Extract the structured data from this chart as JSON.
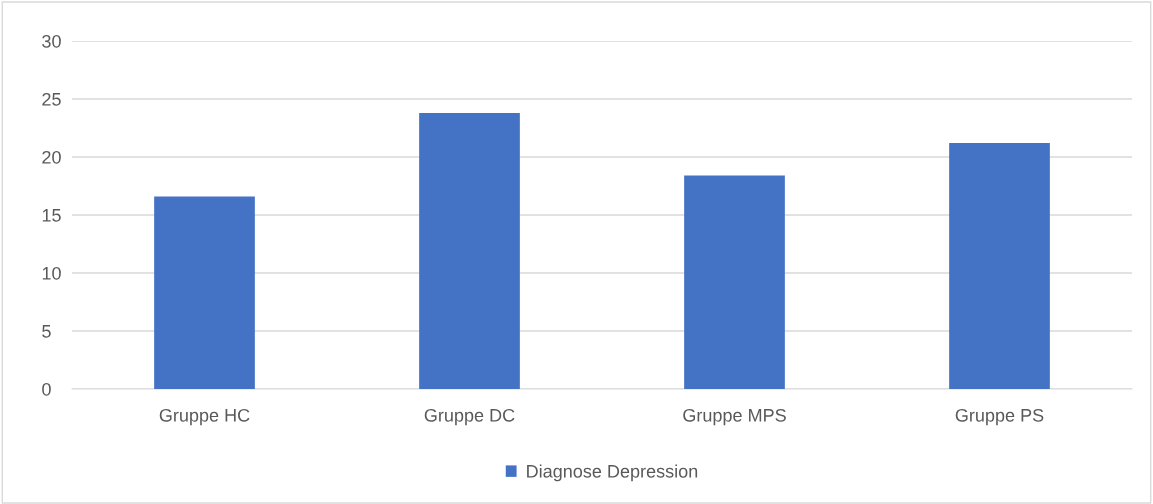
{
  "chart_data": {
    "type": "bar",
    "categories": [
      "Gruppe HC",
      "Gruppe DC",
      "Gruppe MPS",
      "Gruppe PS"
    ],
    "series": [
      {
        "name": "Diagnose Depression",
        "color": "#4472c4",
        "values": [
          16.6,
          23.8,
          18.4,
          21.2
        ]
      }
    ],
    "ylim": [
      0,
      30
    ],
    "yticks": [
      0,
      5,
      10,
      15,
      20,
      25,
      30
    ],
    "grid": "y",
    "legend": "bottom"
  }
}
